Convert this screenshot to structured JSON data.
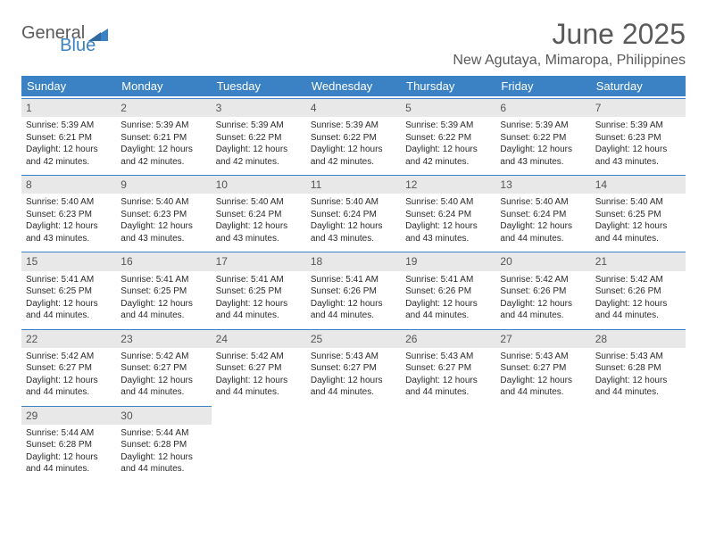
{
  "logo": {
    "text_general": "General",
    "text_blue": "Blue",
    "icon_color": "#3b82c4"
  },
  "header": {
    "month_title": "June 2025",
    "location": "New Agutaya, Mimaropa, Philippines"
  },
  "colors": {
    "header_bg": "#3b82c4",
    "header_text": "#ffffff",
    "daynum_bg": "#e8e8e8",
    "daynum_border": "#3b82c4",
    "text": "#333333",
    "background": "#ffffff"
  },
  "weekdays": [
    "Sunday",
    "Monday",
    "Tuesday",
    "Wednesday",
    "Thursday",
    "Friday",
    "Saturday"
  ],
  "days": [
    {
      "n": "1",
      "sunrise": "5:39 AM",
      "sunset": "6:21 PM",
      "dh": "12",
      "dm": "42"
    },
    {
      "n": "2",
      "sunrise": "5:39 AM",
      "sunset": "6:21 PM",
      "dh": "12",
      "dm": "42"
    },
    {
      "n": "3",
      "sunrise": "5:39 AM",
      "sunset": "6:22 PM",
      "dh": "12",
      "dm": "42"
    },
    {
      "n": "4",
      "sunrise": "5:39 AM",
      "sunset": "6:22 PM",
      "dh": "12",
      "dm": "42"
    },
    {
      "n": "5",
      "sunrise": "5:39 AM",
      "sunset": "6:22 PM",
      "dh": "12",
      "dm": "42"
    },
    {
      "n": "6",
      "sunrise": "5:39 AM",
      "sunset": "6:22 PM",
      "dh": "12",
      "dm": "43"
    },
    {
      "n": "7",
      "sunrise": "5:39 AM",
      "sunset": "6:23 PM",
      "dh": "12",
      "dm": "43"
    },
    {
      "n": "8",
      "sunrise": "5:40 AM",
      "sunset": "6:23 PM",
      "dh": "12",
      "dm": "43"
    },
    {
      "n": "9",
      "sunrise": "5:40 AM",
      "sunset": "6:23 PM",
      "dh": "12",
      "dm": "43"
    },
    {
      "n": "10",
      "sunrise": "5:40 AM",
      "sunset": "6:24 PM",
      "dh": "12",
      "dm": "43"
    },
    {
      "n": "11",
      "sunrise": "5:40 AM",
      "sunset": "6:24 PM",
      "dh": "12",
      "dm": "43"
    },
    {
      "n": "12",
      "sunrise": "5:40 AM",
      "sunset": "6:24 PM",
      "dh": "12",
      "dm": "43"
    },
    {
      "n": "13",
      "sunrise": "5:40 AM",
      "sunset": "6:24 PM",
      "dh": "12",
      "dm": "44"
    },
    {
      "n": "14",
      "sunrise": "5:40 AM",
      "sunset": "6:25 PM",
      "dh": "12",
      "dm": "44"
    },
    {
      "n": "15",
      "sunrise": "5:41 AM",
      "sunset": "6:25 PM",
      "dh": "12",
      "dm": "44"
    },
    {
      "n": "16",
      "sunrise": "5:41 AM",
      "sunset": "6:25 PM",
      "dh": "12",
      "dm": "44"
    },
    {
      "n": "17",
      "sunrise": "5:41 AM",
      "sunset": "6:25 PM",
      "dh": "12",
      "dm": "44"
    },
    {
      "n": "18",
      "sunrise": "5:41 AM",
      "sunset": "6:26 PM",
      "dh": "12",
      "dm": "44"
    },
    {
      "n": "19",
      "sunrise": "5:41 AM",
      "sunset": "6:26 PM",
      "dh": "12",
      "dm": "44"
    },
    {
      "n": "20",
      "sunrise": "5:42 AM",
      "sunset": "6:26 PM",
      "dh": "12",
      "dm": "44"
    },
    {
      "n": "21",
      "sunrise": "5:42 AM",
      "sunset": "6:26 PM",
      "dh": "12",
      "dm": "44"
    },
    {
      "n": "22",
      "sunrise": "5:42 AM",
      "sunset": "6:27 PM",
      "dh": "12",
      "dm": "44"
    },
    {
      "n": "23",
      "sunrise": "5:42 AM",
      "sunset": "6:27 PM",
      "dh": "12",
      "dm": "44"
    },
    {
      "n": "24",
      "sunrise": "5:42 AM",
      "sunset": "6:27 PM",
      "dh": "12",
      "dm": "44"
    },
    {
      "n": "25",
      "sunrise": "5:43 AM",
      "sunset": "6:27 PM",
      "dh": "12",
      "dm": "44"
    },
    {
      "n": "26",
      "sunrise": "5:43 AM",
      "sunset": "6:27 PM",
      "dh": "12",
      "dm": "44"
    },
    {
      "n": "27",
      "sunrise": "5:43 AM",
      "sunset": "6:27 PM",
      "dh": "12",
      "dm": "44"
    },
    {
      "n": "28",
      "sunrise": "5:43 AM",
      "sunset": "6:28 PM",
      "dh": "12",
      "dm": "44"
    },
    {
      "n": "29",
      "sunrise": "5:44 AM",
      "sunset": "6:28 PM",
      "dh": "12",
      "dm": "44"
    },
    {
      "n": "30",
      "sunrise": "5:44 AM",
      "sunset": "6:28 PM",
      "dh": "12",
      "dm": "44"
    }
  ],
  "labels": {
    "sunrise": "Sunrise:",
    "sunset": "Sunset:",
    "daylight_prefix": "Daylight:",
    "hours_word": "hours",
    "and_word": "and",
    "minutes_word": "minutes."
  }
}
